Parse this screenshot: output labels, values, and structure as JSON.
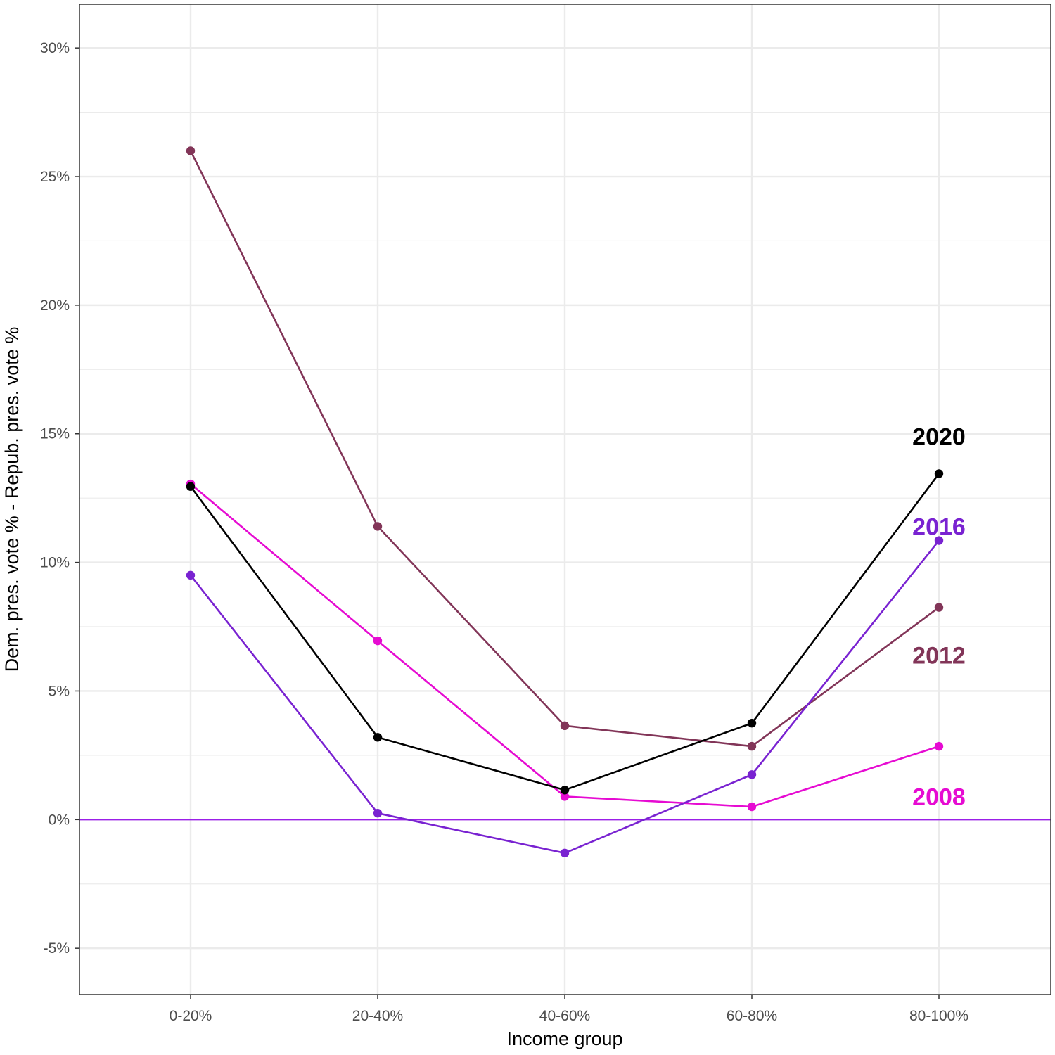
{
  "chart_data": {
    "type": "line",
    "xlabel": "Income group",
    "ylabel": "Dem. pres. vote % - Repub. pres. vote %",
    "categories": [
      "0-20%",
      "20-40%",
      "40-60%",
      "60-80%",
      "80-100%"
    ],
    "ylim": [
      -6.8,
      31.7
    ],
    "y_ticks": [
      -5,
      0,
      5,
      10,
      15,
      20,
      25,
      30
    ],
    "y_tick_labels": [
      "-5%",
      "0%",
      "5%",
      "10%",
      "15%",
      "20%",
      "25%",
      "30%"
    ],
    "grid": true,
    "legend": "none (series labeled directly at right end)",
    "reference_line": {
      "y": 0,
      "color": "#9b1fe8"
    },
    "series": [
      {
        "name": "2012",
        "color": "#823558",
        "values": [
          26.0,
          11.4,
          3.65,
          2.85,
          8.25
        ]
      },
      {
        "name": "2008",
        "color": "#e60bd2",
        "values": [
          13.05,
          6.95,
          0.9,
          0.5,
          2.85
        ]
      },
      {
        "name": "2016",
        "color": "#7922d1",
        "values": [
          9.5,
          0.25,
          -1.3,
          1.75,
          10.85
        ]
      },
      {
        "name": "2020",
        "color": "#000000",
        "values": [
          12.95,
          3.2,
          1.15,
          3.75,
          13.45
        ]
      }
    ],
    "series_labels": [
      {
        "name": "2020",
        "y": 14.9
      },
      {
        "name": "2016",
        "y": 11.4
      },
      {
        "name": "2012",
        "y": 6.4
      },
      {
        "name": "2008",
        "y": 0.9
      }
    ]
  }
}
